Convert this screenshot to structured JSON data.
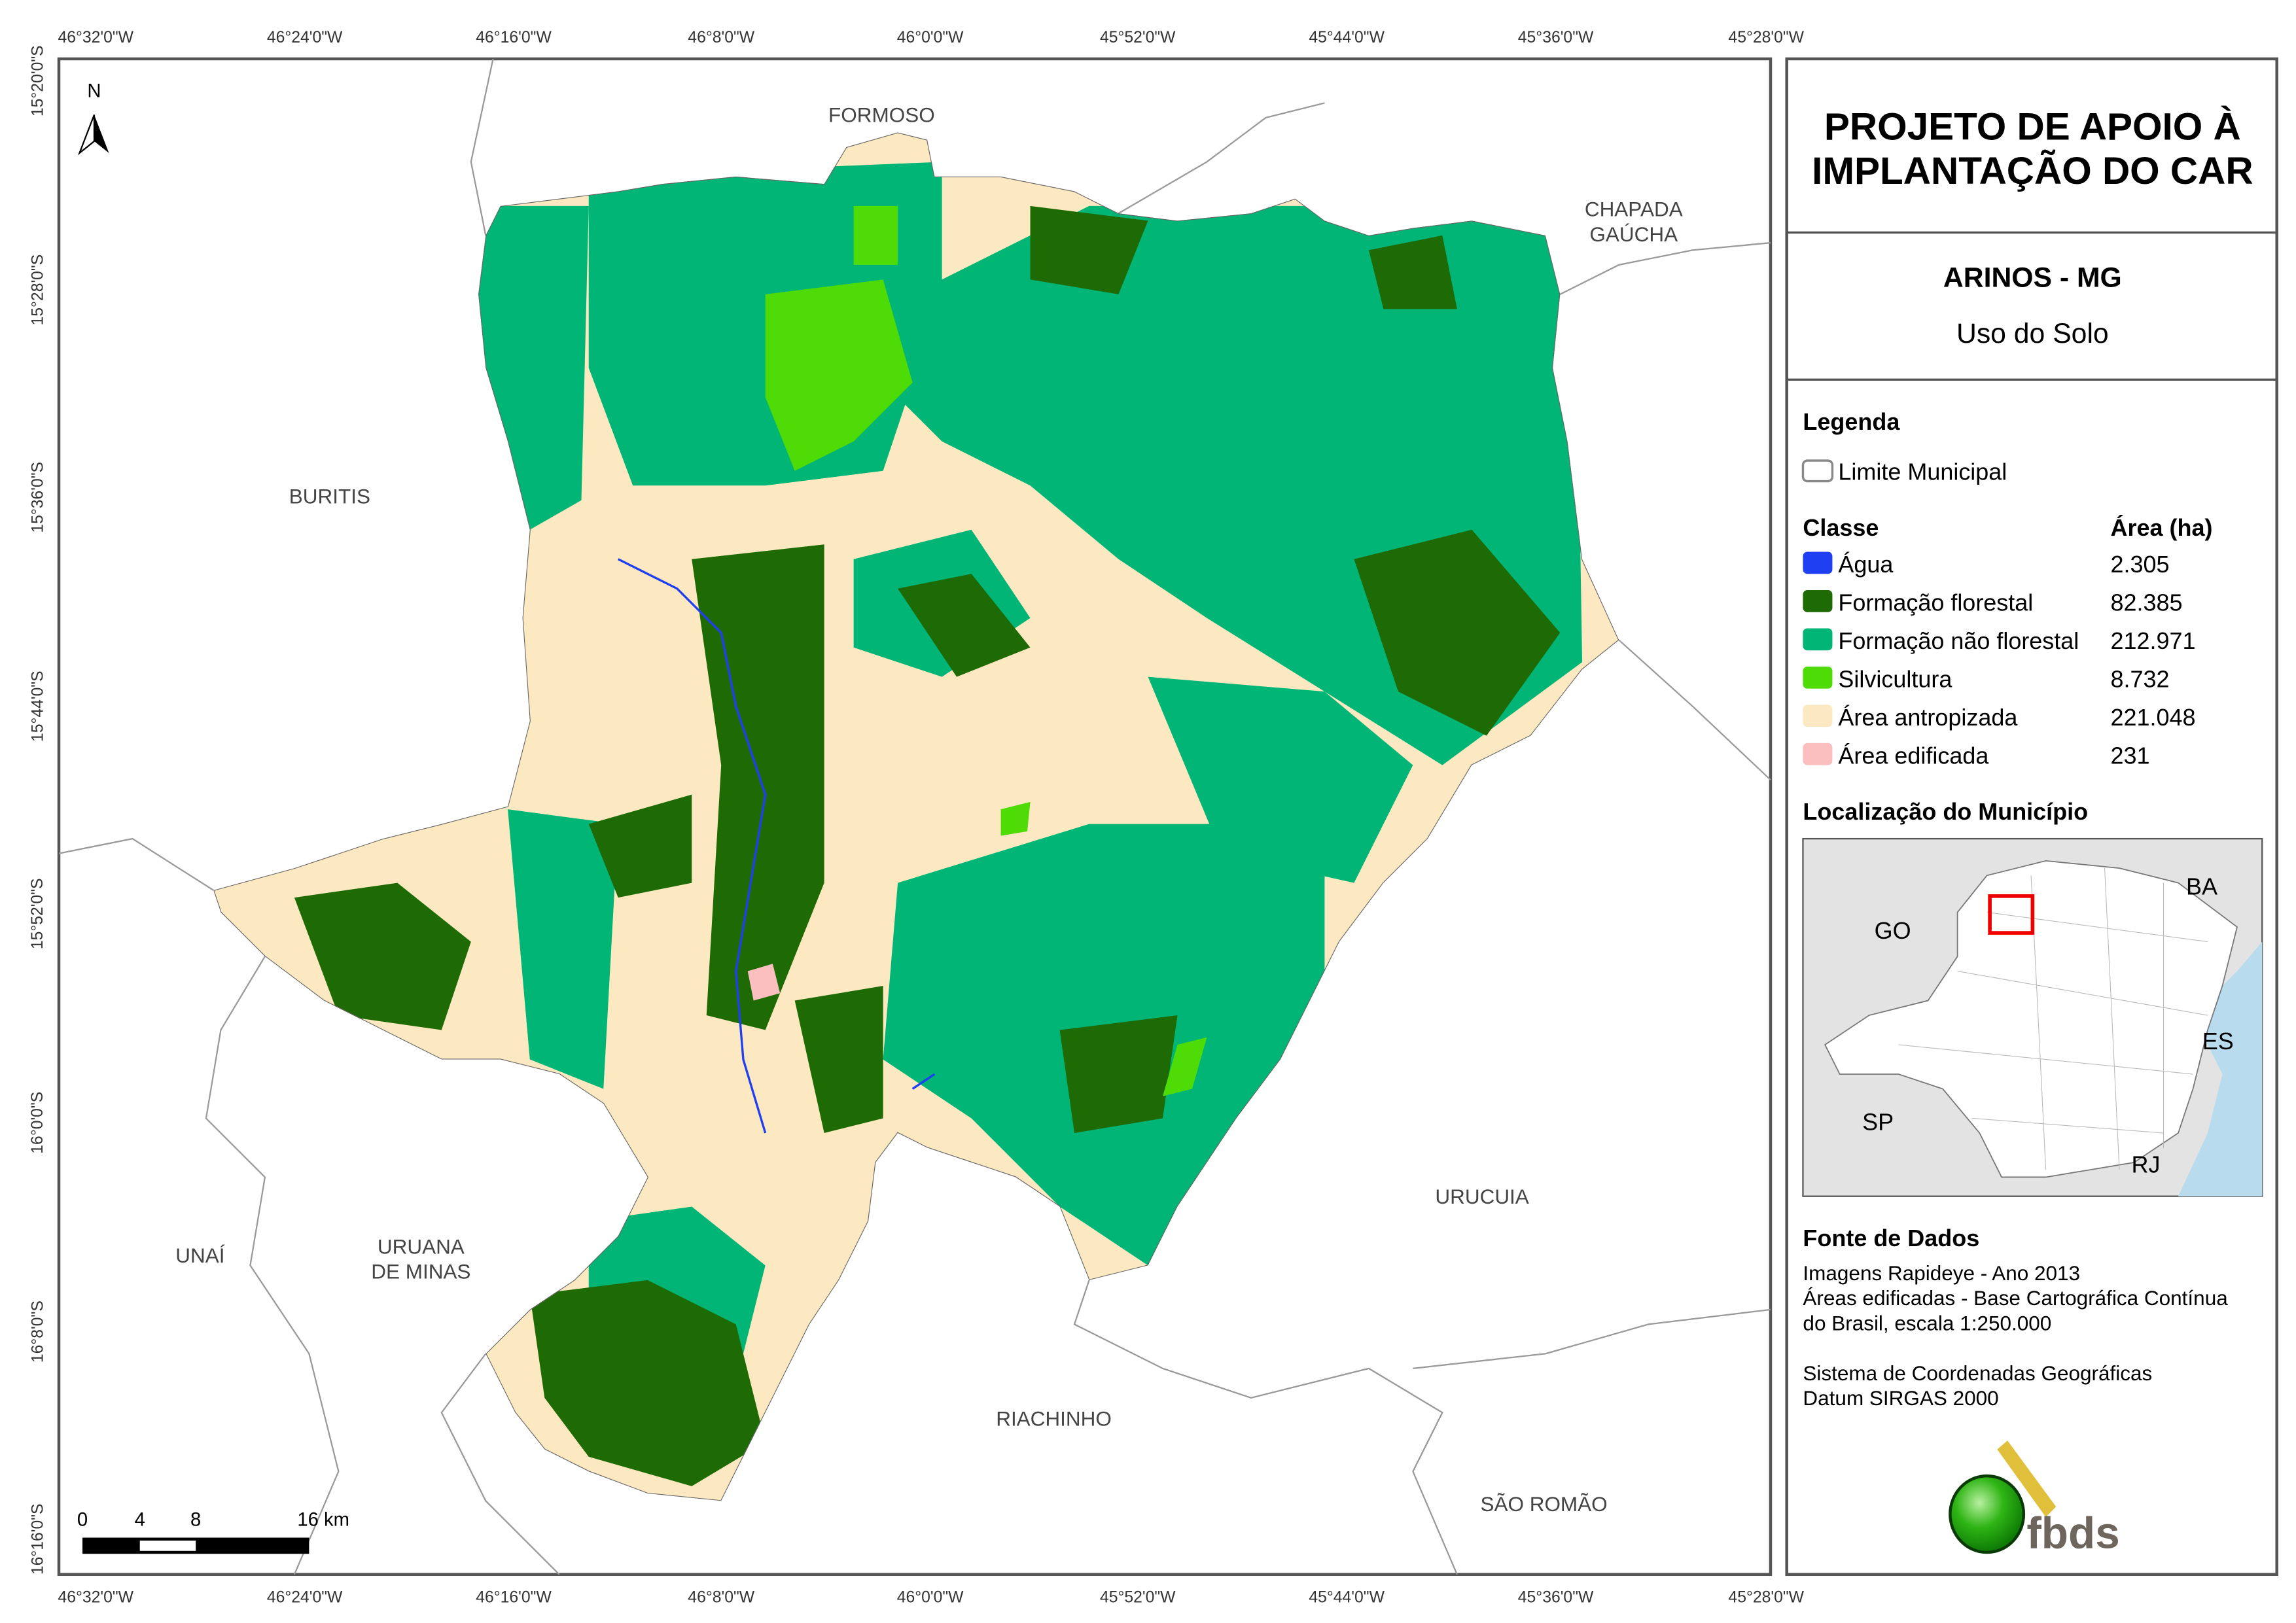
{
  "map": {
    "north_label": "N",
    "longitude_ticks": [
      "46°32'0\"W",
      "46°24'0\"W",
      "46°16'0\"W",
      "46°8'0\"W",
      "46°0'0\"W",
      "45°52'0\"W",
      "45°44'0\"W",
      "45°36'0\"W",
      "45°28'0\"W"
    ],
    "latitude_ticks": [
      "15°20'0\"S",
      "15°28'0\"S",
      "15°36'0\"S",
      "15°44'0\"S",
      "15°52'0\"S",
      "16°0'0\"S",
      "16°8'0\"S",
      "16°16'0\"S"
    ],
    "neighbors": {
      "formoso": "FORMOSO",
      "chapada_1": "CHAPADA",
      "chapada_2": "GAÚCHA",
      "buritis": "BURITIS",
      "unai": "UNAÍ",
      "uruana_1": "URUANA",
      "uruana_2": "DE MINAS",
      "urucuia": "URUCUIA",
      "riachinho": "RIACHINHO",
      "sao_romao": "SÃO ROMÃO"
    },
    "scale_bar": {
      "labels": [
        "0",
        "4",
        "8",
        "16 km"
      ]
    }
  },
  "panel": {
    "title_1": "PROJETO DE APOIO À",
    "title_2": "IMPLANTAÇÃO DO CAR",
    "municipality": "ARINOS - MG",
    "subtitle": "Uso do Solo",
    "legend_title": "Legenda",
    "boundary_label": "Limite Municipal",
    "class_header": "Classe",
    "area_header": "Área (ha)",
    "classes": [
      {
        "label": "Água",
        "area": "2.305",
        "color": "#1f3ff2"
      },
      {
        "label": "Formação florestal",
        "area": "82.385",
        "color": "#1e6b05"
      },
      {
        "label": "Formação não florestal",
        "area": "212.971",
        "color": "#00b576"
      },
      {
        "label": "Silvicultura",
        "area": "8.732",
        "color": "#4fdc06"
      },
      {
        "label": "Área antropizada",
        "area": "221.048",
        "color": "#fde9c1"
      },
      {
        "label": "Área edificada",
        "area": "231",
        "color": "#fbbfbf"
      }
    ],
    "location_title": "Localização do Município",
    "inset_labels": {
      "go": "GO",
      "ba": "BA",
      "es": "ES",
      "sp": "SP",
      "rj": "RJ"
    },
    "source_title": "Fonte de Dados",
    "source_lines": [
      "Imagens Rapideye - Ano 2013",
      "Áreas edificadas - Base Cartográfica Contínua",
      "do Brasil, escala 1:250.000",
      "",
      "Sistema de Coordenadas Geográficas",
      "Datum SIRGAS 2000"
    ],
    "logo_text": "fbds"
  }
}
